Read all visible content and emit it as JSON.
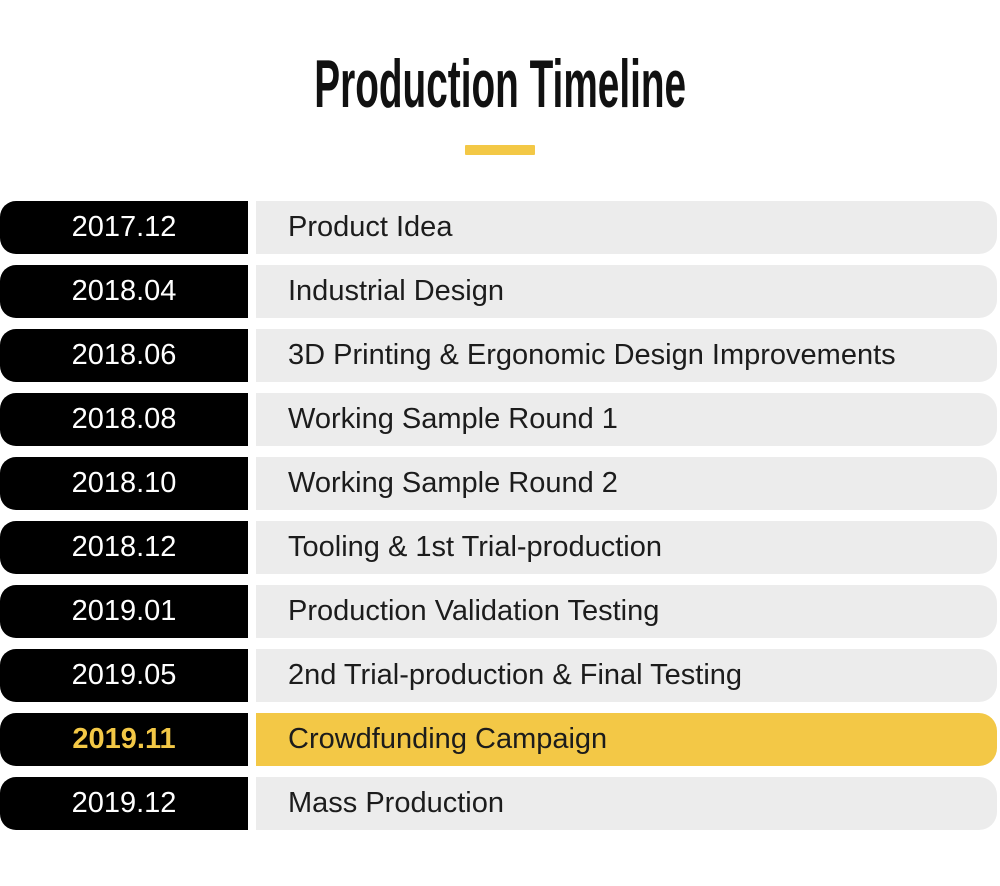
{
  "header": {
    "title": "Production Timeline"
  },
  "timeline": {
    "rows": [
      {
        "date": "2017.12",
        "label": "Product Idea",
        "highlighted": false
      },
      {
        "date": "2018.04",
        "label": "Industrial Design",
        "highlighted": false
      },
      {
        "date": "2018.06",
        "label": "3D Printing & Ergonomic Design Improvements",
        "highlighted": false
      },
      {
        "date": "2018.08",
        "label": "Working Sample Round 1",
        "highlighted": false
      },
      {
        "date": "2018.10",
        "label": "Working Sample Round 2",
        "highlighted": false
      },
      {
        "date": "2018.12",
        "label": "Tooling & 1st Trial-production",
        "highlighted": false
      },
      {
        "date": "2019.01",
        "label": "Production Validation Testing",
        "highlighted": false
      },
      {
        "date": "2019.05",
        "label": "2nd Trial-production & Final Testing",
        "highlighted": false
      },
      {
        "date": "2019.11",
        "label": "Crowdfunding Campaign",
        "highlighted": true
      },
      {
        "date": "2019.12",
        "label": "Mass Production",
        "highlighted": false
      }
    ]
  },
  "colors": {
    "accent_yellow": "#F3C846",
    "bar_gray": "#ECECEC",
    "badge_black": "#000000",
    "title_color": "#111111",
    "label_color": "#1C1C1C",
    "date_text_color": "#FFFFFF"
  }
}
